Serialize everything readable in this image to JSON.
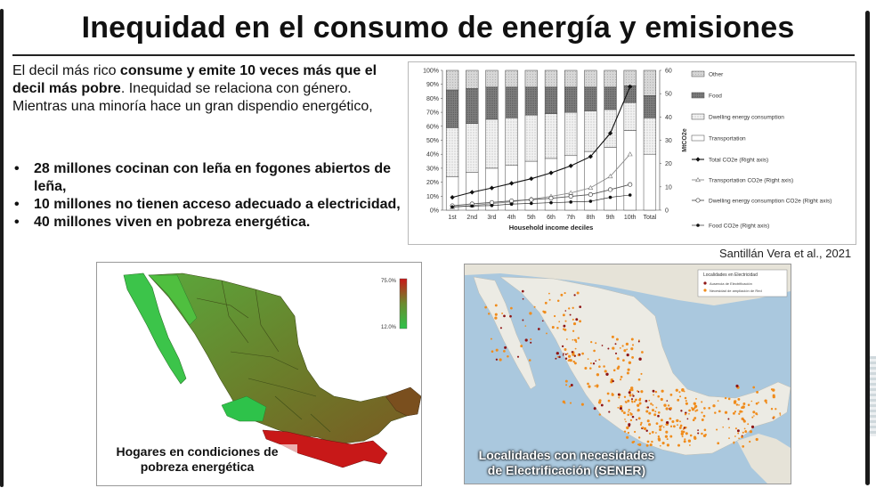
{
  "slide": {
    "title": "Inequidad en el consumo de energía y emisiones",
    "intro_plain_1": "El decil más rico ",
    "intro_bold_1": "consume y emite 10 veces más que el decil más pobre",
    "intro_plain_2": ". Inequidad se relaciona con género.",
    "intro_plain_3": "Mientras una minoría hace un gran dispendio energético,",
    "bullets": [
      "28 millones cocinan con leña en fogones abiertos de leña,",
      "10 millones no tienen acceso adecuado a electricidad,",
      "40 millones viven en pobreza energética."
    ],
    "citation": "Santillán Vera  et al., 2021"
  },
  "chart_data": {
    "type": "bar",
    "stacked": true,
    "xlabel": "Household income deciles",
    "ylabel_right": "MtCO2e",
    "categories": [
      "1st",
      "2nd",
      "3rd",
      "4th",
      "5th",
      "6th",
      "7th",
      "8th",
      "9th",
      "10th",
      "Total"
    ],
    "ylim_left": [
      0,
      100
    ],
    "ylim_right": [
      0,
      60
    ],
    "left_ticks": [
      "0%",
      "10%",
      "20%",
      "30%",
      "40%",
      "50%",
      "60%",
      "70%",
      "80%",
      "90%",
      "100%"
    ],
    "right_ticks": [
      "0",
      "10",
      "20",
      "30",
      "40",
      "50",
      "60"
    ],
    "bar_series": [
      {
        "name": "Transportation",
        "values": [
          24,
          27,
          30,
          32,
          35,
          37,
          39,
          42,
          45,
          57,
          40
        ],
        "color": "#ffffff"
      },
      {
        "name": "Dwelling energy consumption",
        "values": [
          35,
          35,
          35,
          34,
          33,
          32,
          31,
          29,
          27,
          20,
          26
        ],
        "color": "#e4e4e4"
      },
      {
        "name": "Food",
        "values": [
          27,
          25,
          23,
          22,
          20,
          19,
          18,
          17,
          16,
          12,
          16
        ],
        "color": "#8c8c8c"
      },
      {
        "name": "Other",
        "values": [
          14,
          13,
          12,
          12,
          12,
          12,
          12,
          12,
          12,
          11,
          18
        ],
        "color": "#cfcfcf"
      }
    ],
    "line_series": [
      {
        "name": "Total CO2e (Right axis)",
        "values": [
          5.5,
          7.7,
          9.5,
          11.5,
          13.5,
          16,
          19,
          23,
          33,
          53
        ],
        "marker": "diamond"
      },
      {
        "name": "Transportation CO2e (Right axis)",
        "values": [
          1.3,
          2.0,
          2.8,
          3.6,
          4.7,
          5.9,
          7.4,
          9.6,
          14.5,
          24
        ],
        "marker": "triangle"
      },
      {
        "name": "Dwelling energy consumption CO2e (Right axis)",
        "values": [
          1.9,
          2.7,
          3.3,
          4.0,
          4.5,
          5.1,
          5.9,
          6.7,
          8.8,
          11.0
        ],
        "marker": "circle"
      },
      {
        "name": "Food CO2e (Right axis)",
        "values": [
          1.4,
          1.8,
          2.0,
          2.6,
          2.9,
          3.2,
          3.5,
          3.8,
          5.5,
          6.5
        ],
        "marker": "dot"
      }
    ]
  },
  "map_left": {
    "legend_max": "75.0%",
    "legend_min": "12.0%",
    "caption_line_1": "Hogares en condiciones de",
    "caption_line_2": "pobreza energética",
    "colors": {
      "low": "#2ec24a",
      "mid": "#6b8b2e",
      "high": "#c81818"
    }
  },
  "map_right": {
    "map_title": "Localidades en Electricidad",
    "legend_1": "Ausencia de Electrificación",
    "legend_2": "Necesidad de ampliación de Red",
    "caption_line_1": "Localidades con necesidades",
    "caption_line_2": "de Electrificación (SENER)",
    "colors": {
      "water": "#aac8de",
      "land": "#ecebe4",
      "dot_a": "#8e1414",
      "dot_b": "#f08c1c"
    }
  }
}
